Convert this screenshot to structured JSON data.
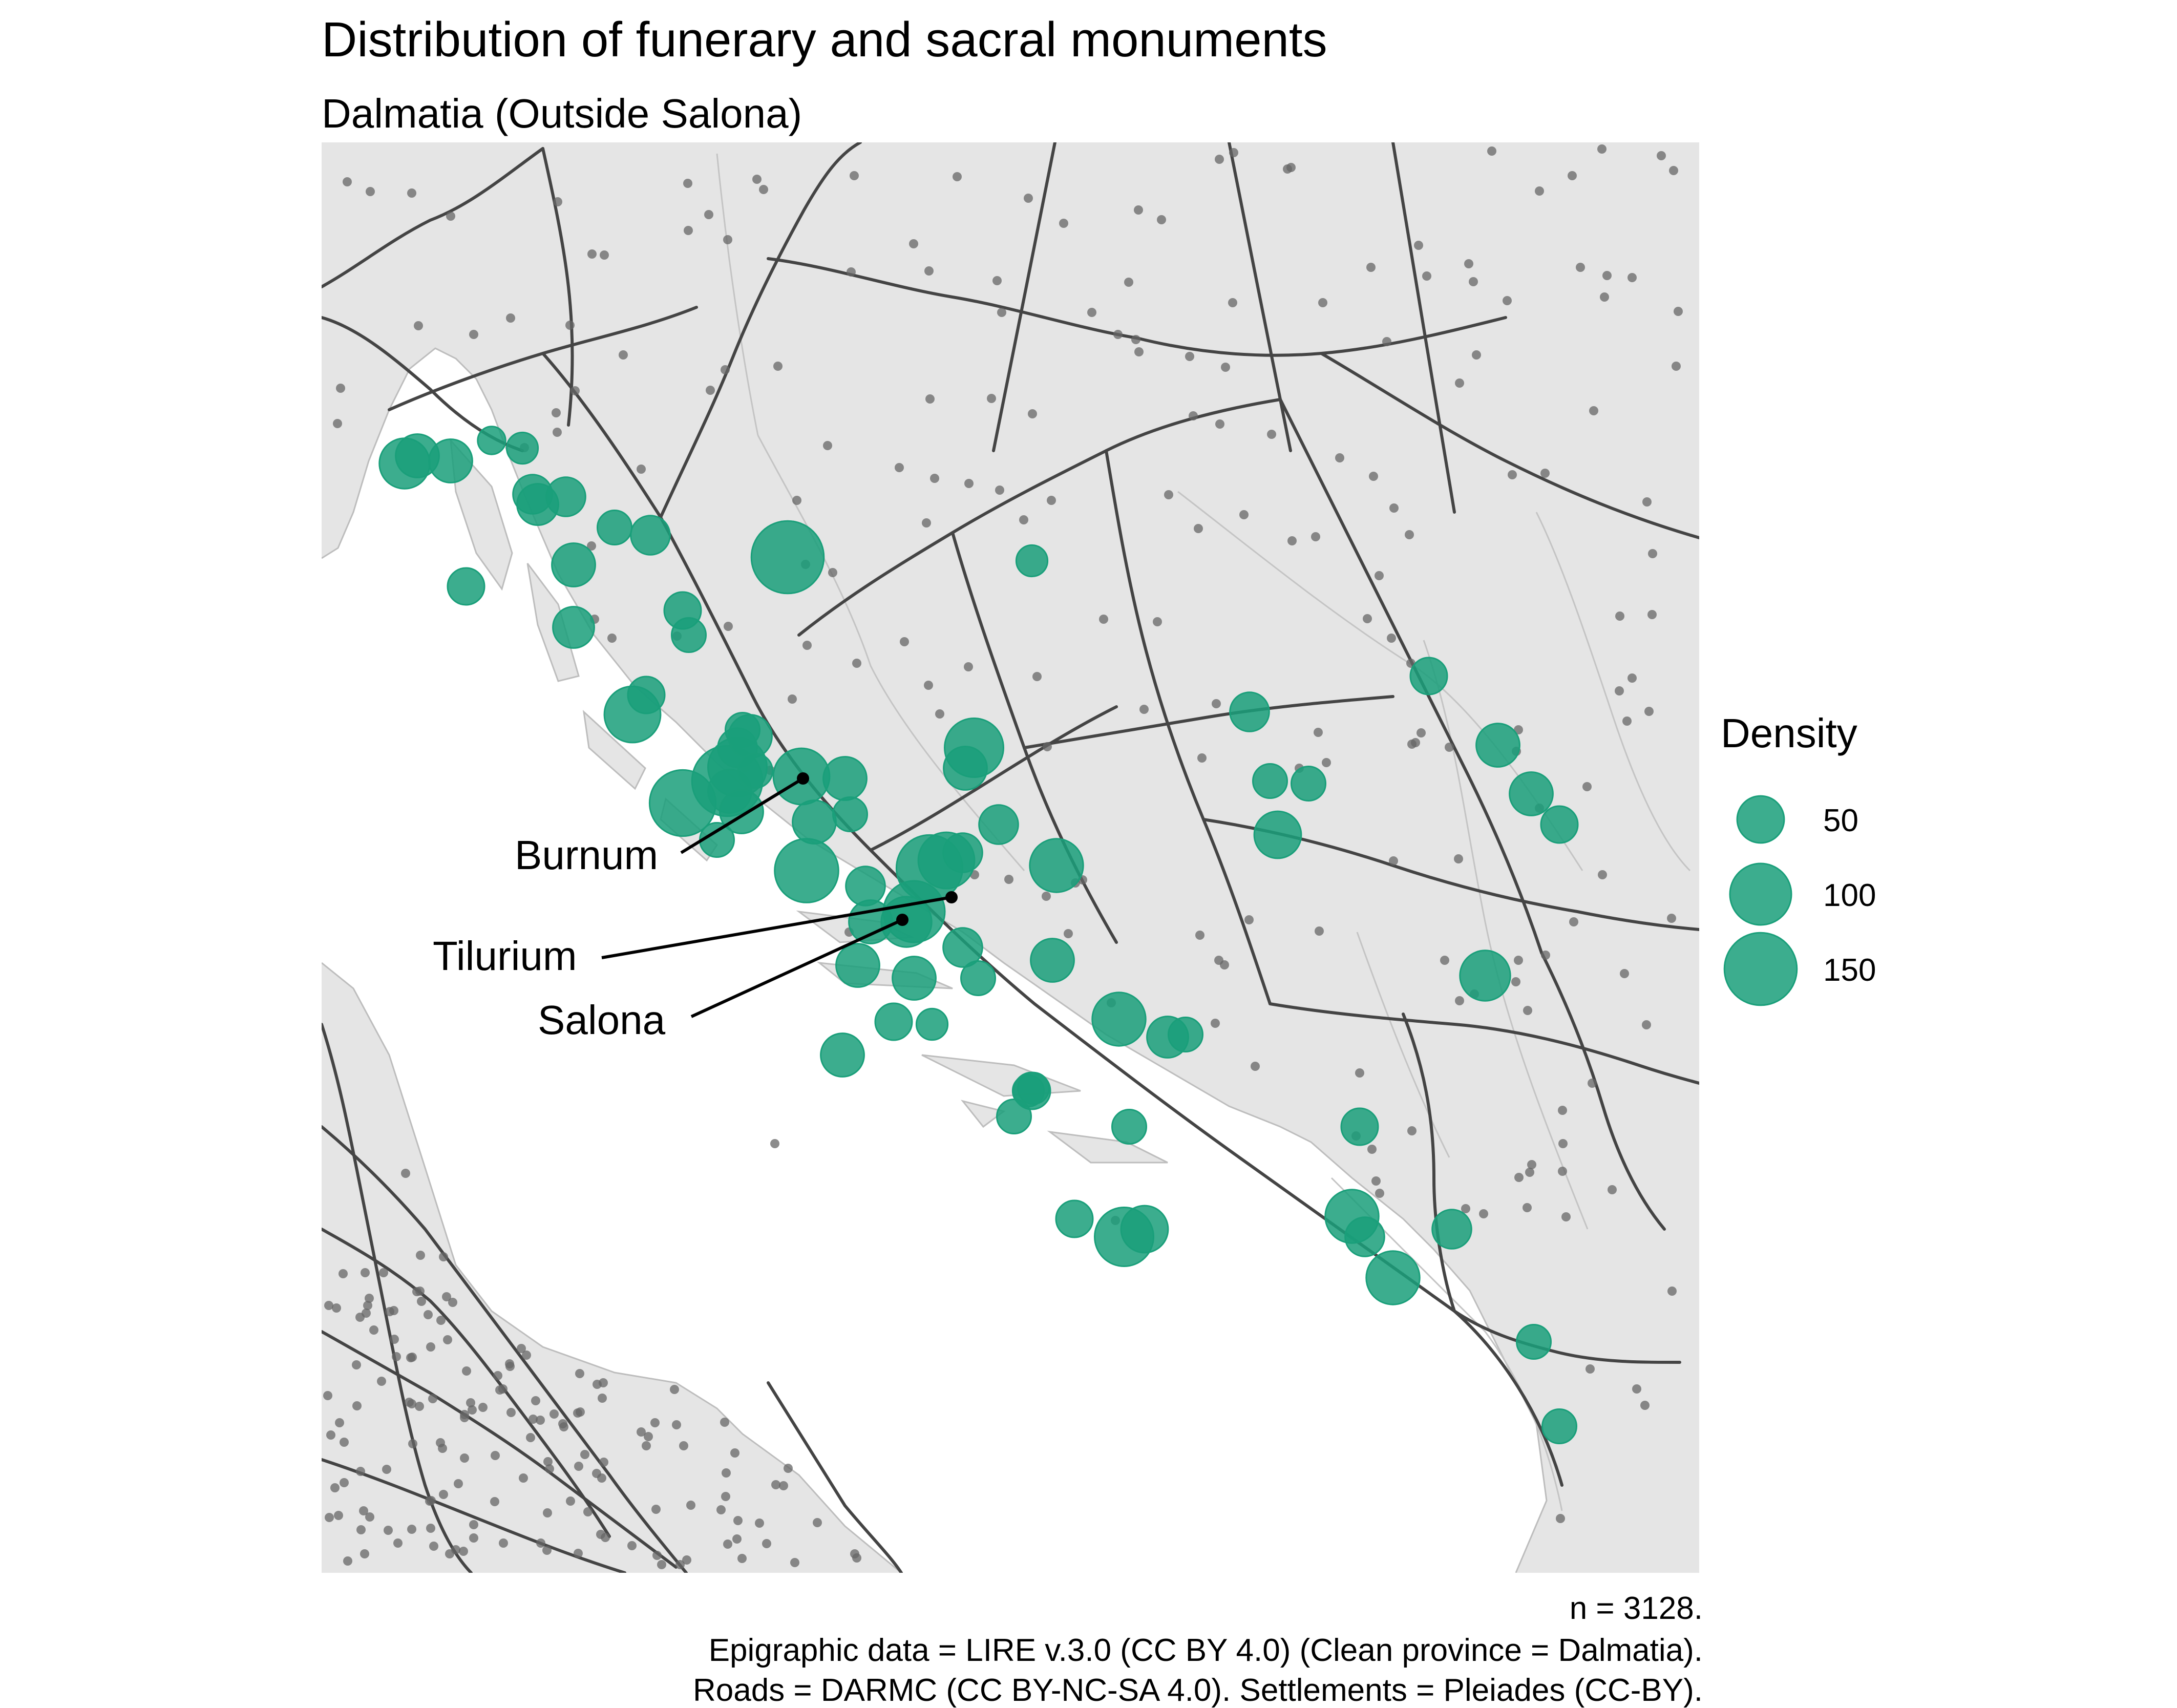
{
  "title": "Distribution of funerary and sacral monuments",
  "subtitle": "Dalmatia (Outside Salona)",
  "legend": {
    "title": "Density",
    "items": [
      {
        "label": "50",
        "value": 50
      },
      {
        "label": "100",
        "value": 100
      },
      {
        "label": "150",
        "value": 150
      }
    ]
  },
  "annotations": [
    {
      "name": "Burnum",
      "label": "Burnum"
    },
    {
      "name": "Tilurium",
      "label": "Tilurium"
    },
    {
      "name": "Salona",
      "label": "Salona"
    }
  ],
  "caption": [
    "n = 3128.",
    "Epigraphic data = LIRE v.3.0 (CC BY 4.0) (Clean province = Dalmatia).",
    "Roads = DARMC (CC BY-NC-SA 4.0). Settlements = Pleiades (CC-BY)."
  ],
  "colors": {
    "land": "#e5e5e5",
    "sea": "#ffffff",
    "coastline": "#bdbdbd",
    "roads": "#444444",
    "settlements": "#666666",
    "density_points": "#1a9f7a"
  },
  "map_data": {
    "type": "bubble-map",
    "density_points": [
      {
        "density": 60
      },
      {
        "density": 40
      },
      {
        "density": 10
      },
      {
        "density": 15
      },
      {
        "density": 30
      },
      {
        "density": 40
      },
      {
        "density": 35
      },
      {
        "density": 30
      },
      {
        "density": 30
      },
      {
        "density": 40
      },
      {
        "density": 150
      },
      {
        "density": 20
      },
      {
        "density": 25
      },
      {
        "density": 20
      },
      {
        "density": 15
      },
      {
        "density": 80
      },
      {
        "density": 25
      },
      {
        "density": 35
      },
      {
        "density": 25
      },
      {
        "density": 120
      },
      {
        "density": 140
      },
      {
        "density": 90
      },
      {
        "density": 80
      },
      {
        "density": 40
      },
      {
        "density": 40
      },
      {
        "density": 40
      },
      {
        "density": 110
      },
      {
        "density": 40
      },
      {
        "density": 20
      },
      {
        "density": 120
      },
      {
        "density": 30
      },
      {
        "density": 80
      },
      {
        "density": 100
      },
      {
        "density": 60
      },
      {
        "density": 40
      },
      {
        "density": 30
      },
      {
        "density": 40
      },
      {
        "density": 40
      },
      {
        "density": 25
      },
      {
        "density": 15
      },
      {
        "density": 40
      },
      {
        "density": 30
      },
      {
        "density": 20
      },
      {
        "density": 30
      },
      {
        "density": 90
      },
      {
        "density": 40
      },
      {
        "density": 70
      },
      {
        "density": 40
      },
      {
        "density": 70
      },
      {
        "density": 35
      },
      {
        "density": 20
      },
      {
        "density": 15
      },
      {
        "density": 15
      },
      {
        "density": 25
      },
      {
        "density": 20
      },
      {
        "density": 25
      },
      {
        "density": 90
      },
      {
        "density": 50
      },
      {
        "density": 20
      },
      {
        "density": 50
      },
      {
        "density": 25
      },
      {
        "density": 40
      },
      {
        "density": 40
      },
      {
        "density": 25
      },
      {
        "density": 60
      },
      {
        "density": 70
      },
      {
        "density": 30
      },
      {
        "density": 70
      },
      {
        "density": 30
      },
      {
        "density": 20
      },
      {
        "density": 20
      },
      {
        "density": 20
      },
      {
        "density": 25
      },
      {
        "density": 20
      },
      {
        "density": 30
      },
      {
        "density": 20
      },
      {
        "density": 40
      },
      {
        "density": 30
      },
      {
        "density": 20
      },
      {
        "density": 20
      }
    ]
  }
}
